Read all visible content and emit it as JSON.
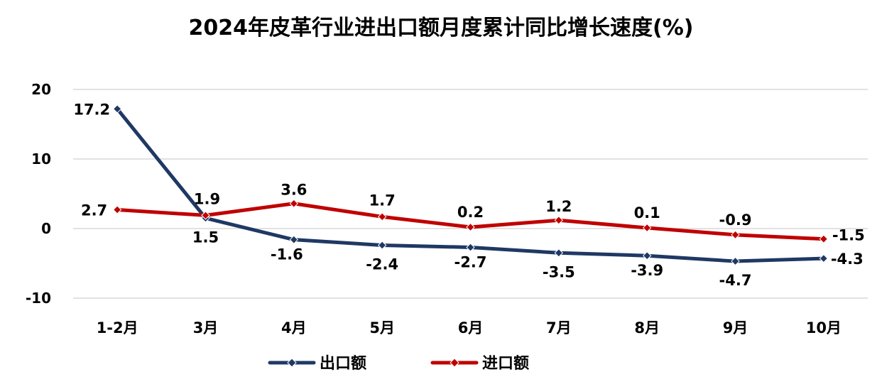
{
  "chart_data": {
    "type": "line",
    "title": "2024年皮革行业进出口额月度累计同比增长速度(%)",
    "categories": [
      "1-2月",
      "3月",
      "4月",
      "5月",
      "6月",
      "7月",
      "8月",
      "9月",
      "10月"
    ],
    "ylim": [
      -10,
      20
    ],
    "yticks": [
      -10,
      0,
      10,
      20
    ],
    "grid": true,
    "legend": "bottom",
    "series": [
      {
        "name": "出口额",
        "color": "#1F3864",
        "values": [
          17.2,
          1.5,
          -1.6,
          -2.4,
          -2.7,
          -3.5,
          -3.9,
          -4.7,
          -4.3
        ]
      },
      {
        "name": "进口额",
        "color": "#C00000",
        "values": [
          2.7,
          1.9,
          3.6,
          1.7,
          0.2,
          1.2,
          0.1,
          -0.9,
          -1.5
        ]
      }
    ]
  }
}
